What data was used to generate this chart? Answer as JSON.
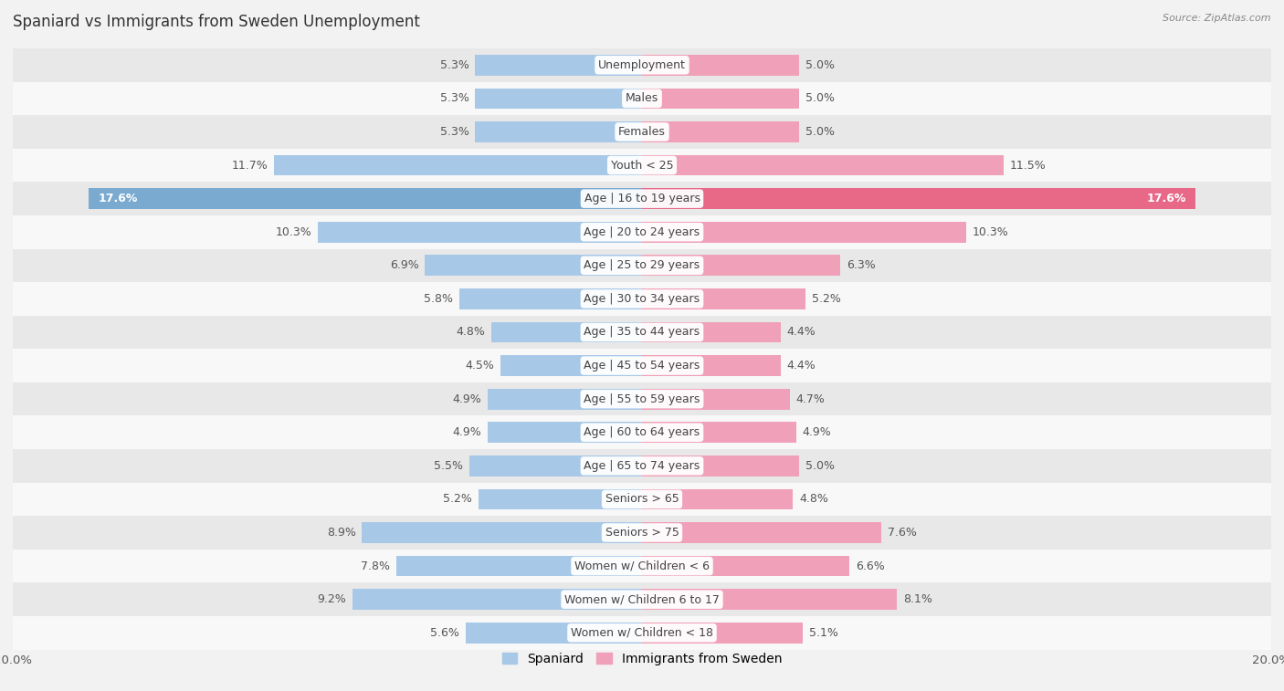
{
  "title": "Spaniard vs Immigrants from Sweden Unemployment",
  "source": "Source: ZipAtlas.com",
  "categories": [
    "Unemployment",
    "Males",
    "Females",
    "Youth < 25",
    "Age | 16 to 19 years",
    "Age | 20 to 24 years",
    "Age | 25 to 29 years",
    "Age | 30 to 34 years",
    "Age | 35 to 44 years",
    "Age | 45 to 54 years",
    "Age | 55 to 59 years",
    "Age | 60 to 64 years",
    "Age | 65 to 74 years",
    "Seniors > 65",
    "Seniors > 75",
    "Women w/ Children < 6",
    "Women w/ Children 6 to 17",
    "Women w/ Children < 18"
  ],
  "spaniard_values": [
    5.3,
    5.3,
    5.3,
    11.7,
    17.6,
    10.3,
    6.9,
    5.8,
    4.8,
    4.5,
    4.9,
    4.9,
    5.5,
    5.2,
    8.9,
    7.8,
    9.2,
    5.6
  ],
  "sweden_values": [
    5.0,
    5.0,
    5.0,
    11.5,
    17.6,
    10.3,
    6.3,
    5.2,
    4.4,
    4.4,
    4.7,
    4.9,
    5.0,
    4.8,
    7.6,
    6.6,
    8.1,
    5.1
  ],
  "spaniard_color": "#a8c8e8",
  "sweden_color": "#f0a0b8",
  "highlight_spaniard_color": "#7aaad0",
  "highlight_sweden_color": "#e86888",
  "background_color": "#f2f2f2",
  "row_color_a": "#e8e8e8",
  "row_color_b": "#f8f8f8",
  "bar_height": 0.62,
  "xlim": 20.0,
  "label_fontsize": 9.0,
  "category_fontsize": 9.0,
  "title_fontsize": 12,
  "legend_fontsize": 10,
  "highlight_rows": [
    "Age | 16 to 19 years"
  ]
}
